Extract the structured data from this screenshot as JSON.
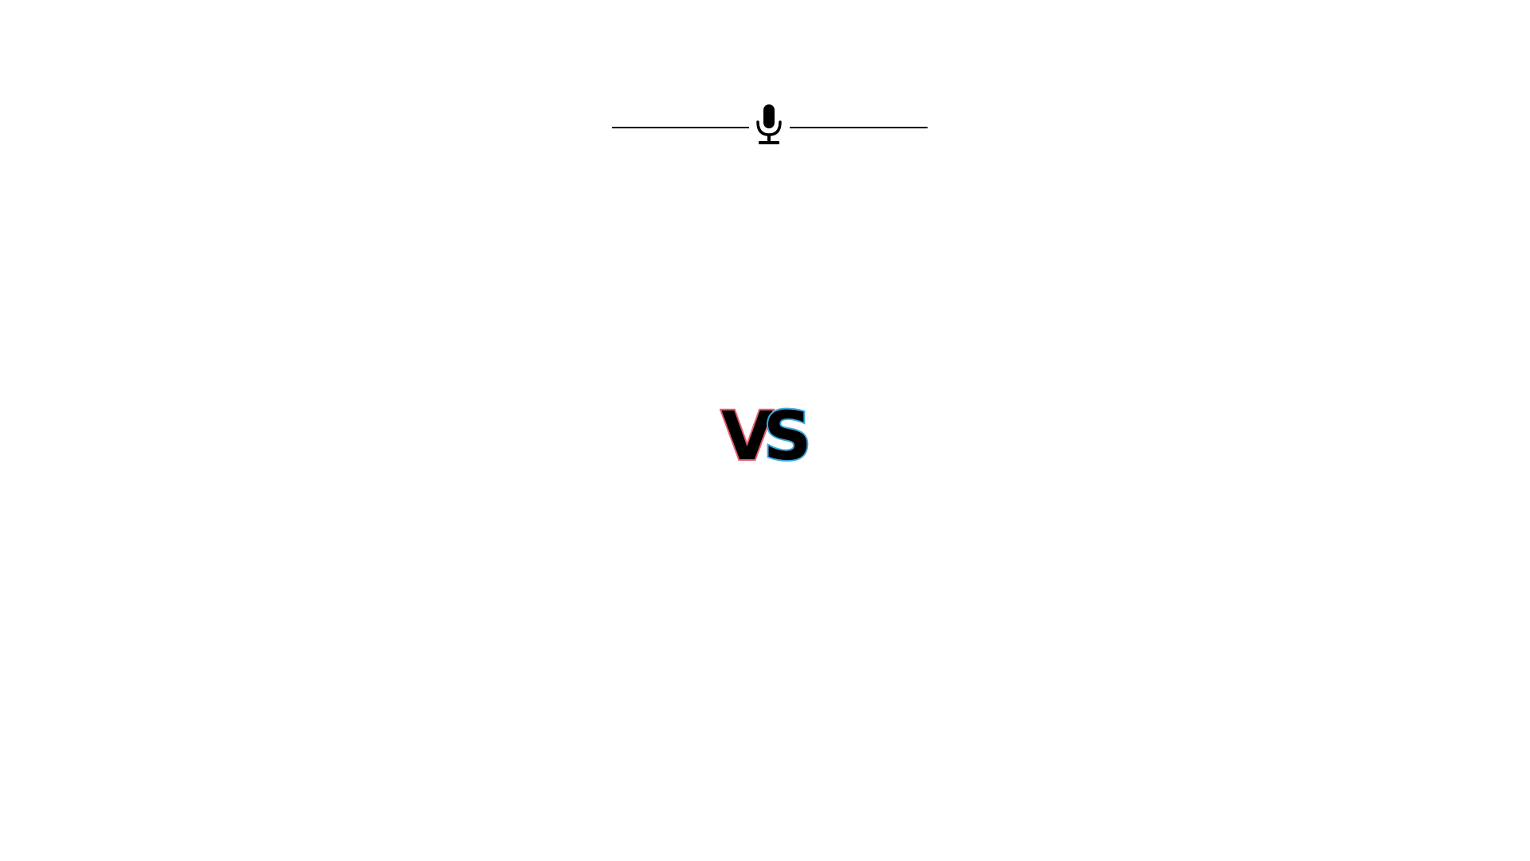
{
  "header": {
    "icon": "microphone-icon",
    "line_color": "#000000"
  },
  "vs_badge": {
    "letter_v": "V",
    "letter_s": "S",
    "fill_color": "#000000",
    "v_outline_color": "#e8606c",
    "s_outline_color": "#3aa8e0"
  },
  "background": "#ffffff"
}
